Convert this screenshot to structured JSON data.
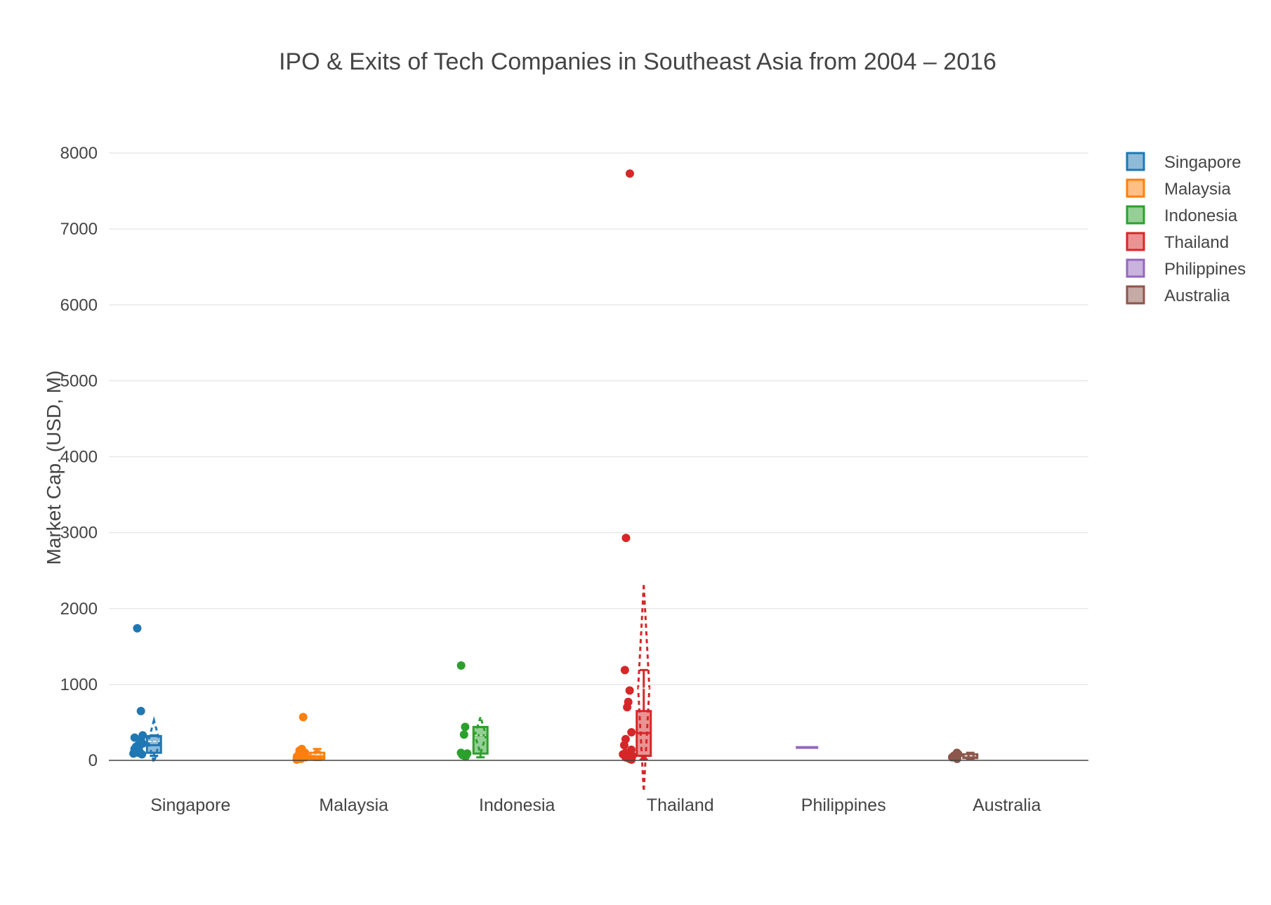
{
  "chart_data": {
    "type": "box",
    "title": "IPO & Exits of Tech Companies in Southeast Asia from 2004 – 2016",
    "xlabel": "",
    "ylabel": "Market Cap. (USD, M)",
    "ylim": [
      -400,
      8400
    ],
    "yticks": [
      0,
      1000,
      2000,
      3000,
      4000,
      5000,
      6000,
      7000,
      8000
    ],
    "grid": true,
    "legend_position": "top-right",
    "categories": [
      "Singapore",
      "Malaysia",
      "Indonesia",
      "Thailand",
      "Philippines",
      "Australia"
    ],
    "series": [
      {
        "name": "Singapore",
        "color": "#1f77b4",
        "points": [
          80,
          90,
          100,
          110,
          120,
          130,
          150,
          180,
          200,
          220,
          260,
          300,
          330,
          650,
          1740
        ],
        "q1": 100,
        "median": 200,
        "q3": 320,
        "whisker_low": 60,
        "whisker_high": 330,
        "mean": 250,
        "sd": 280
      },
      {
        "name": "Malaysia",
        "color": "#ff7f0e",
        "points": [
          10,
          20,
          30,
          40,
          50,
          60,
          80,
          100,
          130,
          150,
          570
        ],
        "q1": 20,
        "median": 50,
        "q3": 100,
        "whisker_low": 5,
        "whisker_high": 150,
        "mean": 80,
        "sd": 60
      },
      {
        "name": "Indonesia",
        "color": "#2ca02c",
        "points": [
          50,
          70,
          90,
          100,
          340,
          440,
          1250
        ],
        "q1": 90,
        "median": 330,
        "q3": 440,
        "whisker_low": 40,
        "whisker_high": 440,
        "mean": 330,
        "sd": 240
      },
      {
        "name": "Thailand",
        "color": "#d62728",
        "points": [
          10,
          20,
          30,
          40,
          60,
          80,
          100,
          140,
          200,
          280,
          370,
          700,
          770,
          920,
          1190,
          2930,
          7730
        ],
        "q1": 60,
        "median": 360,
        "q3": 650,
        "whisker_low": 10,
        "whisker_high": 1190,
        "mean": 950,
        "sd": 1360
      },
      {
        "name": "Philippines",
        "color": "#9467bd",
        "points": [
          170
        ],
        "q1": 170,
        "median": 170,
        "q3": 170,
        "whisker_low": 170,
        "whisker_high": 170,
        "mean": 170,
        "sd": 0
      },
      {
        "name": "Australia",
        "color": "#8c564b",
        "points": [
          20,
          40,
          60,
          80,
          100
        ],
        "q1": 30,
        "median": 50,
        "q3": 80,
        "whisker_low": 20,
        "whisker_high": 100,
        "mean": 60,
        "sd": 15
      }
    ]
  }
}
